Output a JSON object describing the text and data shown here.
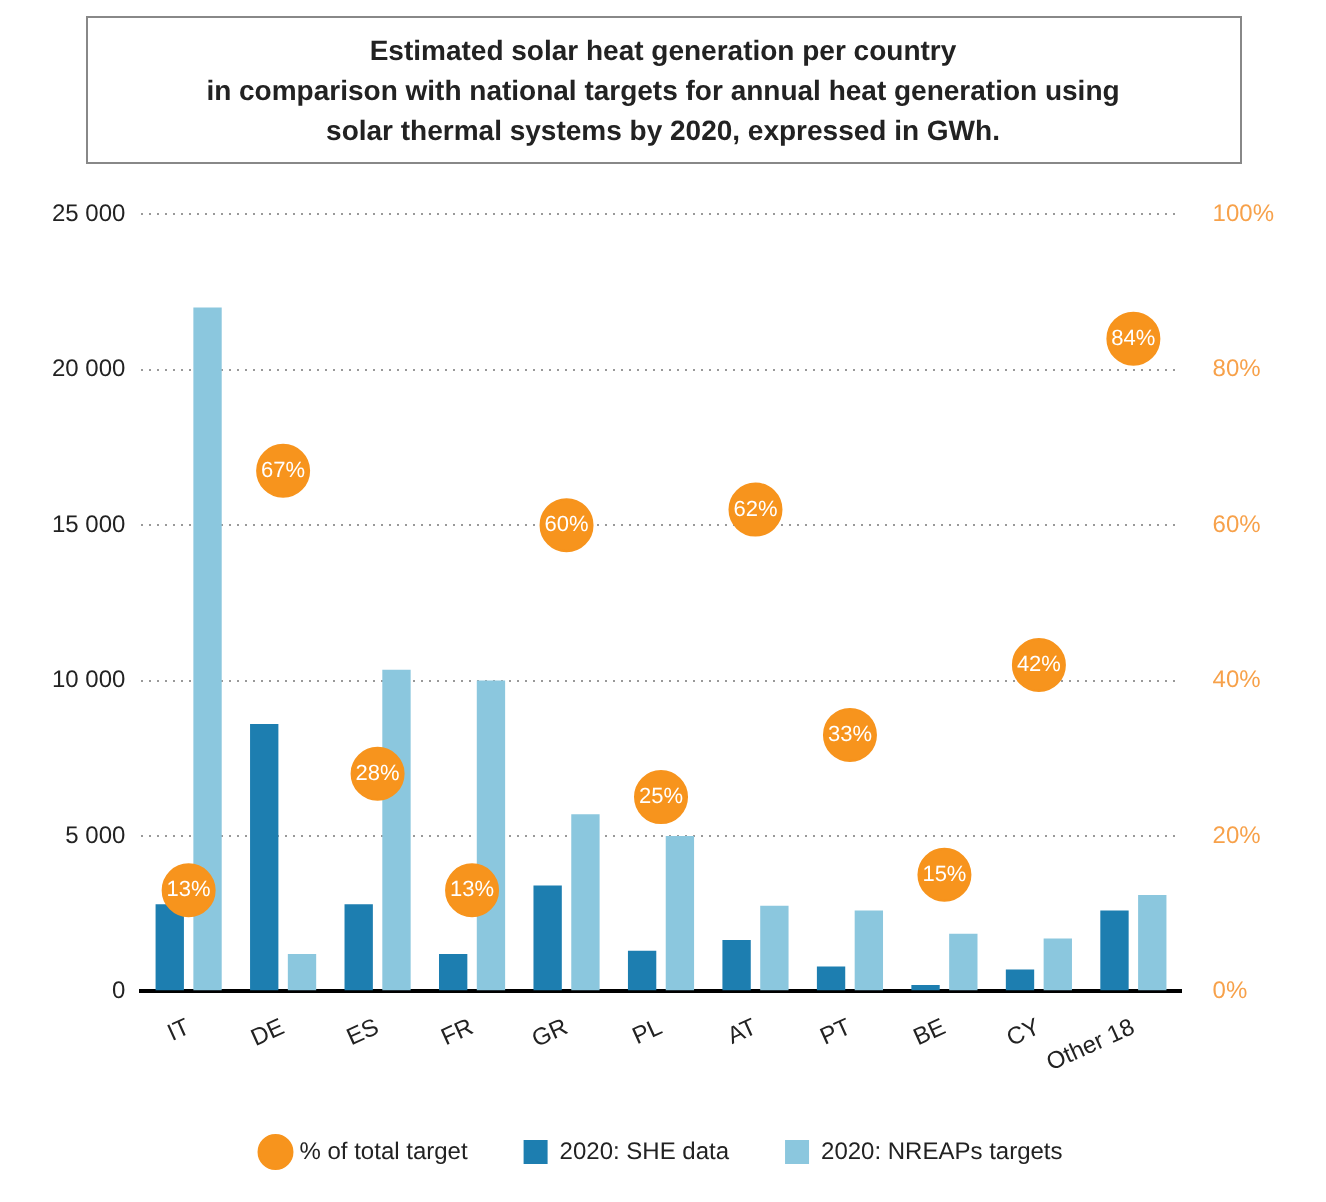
{
  "chart_data": {
    "type": "bar",
    "title": "Estimated solar heat generation per country\nin comparison with national targets for annual heat generation using\nsolar thermal systems by 2020, expressed in GWh.",
    "categories": [
      "IT",
      "DE",
      "ES",
      "FR",
      "GR",
      "PL",
      "AT",
      "PT",
      "BE",
      "CY",
      "Other 18"
    ],
    "series": [
      {
        "name": "2020: SHE data",
        "color": "#1d7eb0",
        "values": [
          2800,
          8600,
          2800,
          1200,
          3400,
          1300,
          1650,
          800,
          200,
          700,
          2600
        ]
      },
      {
        "name": "2020: NREAPs targets",
        "color": "#8bc7de",
        "values": [
          22000,
          1200,
          10350,
          10000,
          5700,
          5000,
          2750,
          2600,
          1850,
          1700,
          3100
        ]
      },
      {
        "name": "% of total target",
        "type": "scatter",
        "axis": "y2",
        "color": "#f7941d",
        "values": [
          13,
          67,
          28,
          13,
          60,
          25,
          62,
          33,
          15,
          42,
          84
        ],
        "value_labels": [
          "13%",
          "67%",
          "28%",
          "13%",
          "60%",
          "25%",
          "62%",
          "33%",
          "15%",
          "42%",
          "84%"
        ]
      }
    ],
    "ylim": [
      0,
      25000
    ],
    "yticks": [
      {
        "value": 0,
        "label": "0"
      },
      {
        "value": 5000,
        "label": "5 000"
      },
      {
        "value": 10000,
        "label": "10 000"
      },
      {
        "value": 15000,
        "label": "15 000"
      },
      {
        "value": 20000,
        "label": "20 000"
      },
      {
        "value": 25000,
        "label": "25 000"
      }
    ],
    "y2lim": [
      0,
      100
    ],
    "y2ticks": [
      {
        "value": 0,
        "label": "0%"
      },
      {
        "value": 20,
        "label": "20%"
      },
      {
        "value": 40,
        "label": "40%"
      },
      {
        "value": 60,
        "label": "60%"
      },
      {
        "value": 80,
        "label": "80%"
      },
      {
        "value": 100,
        "label": "100%"
      }
    ],
    "grid": "y",
    "legend": "bottom",
    "marker": "circle"
  }
}
